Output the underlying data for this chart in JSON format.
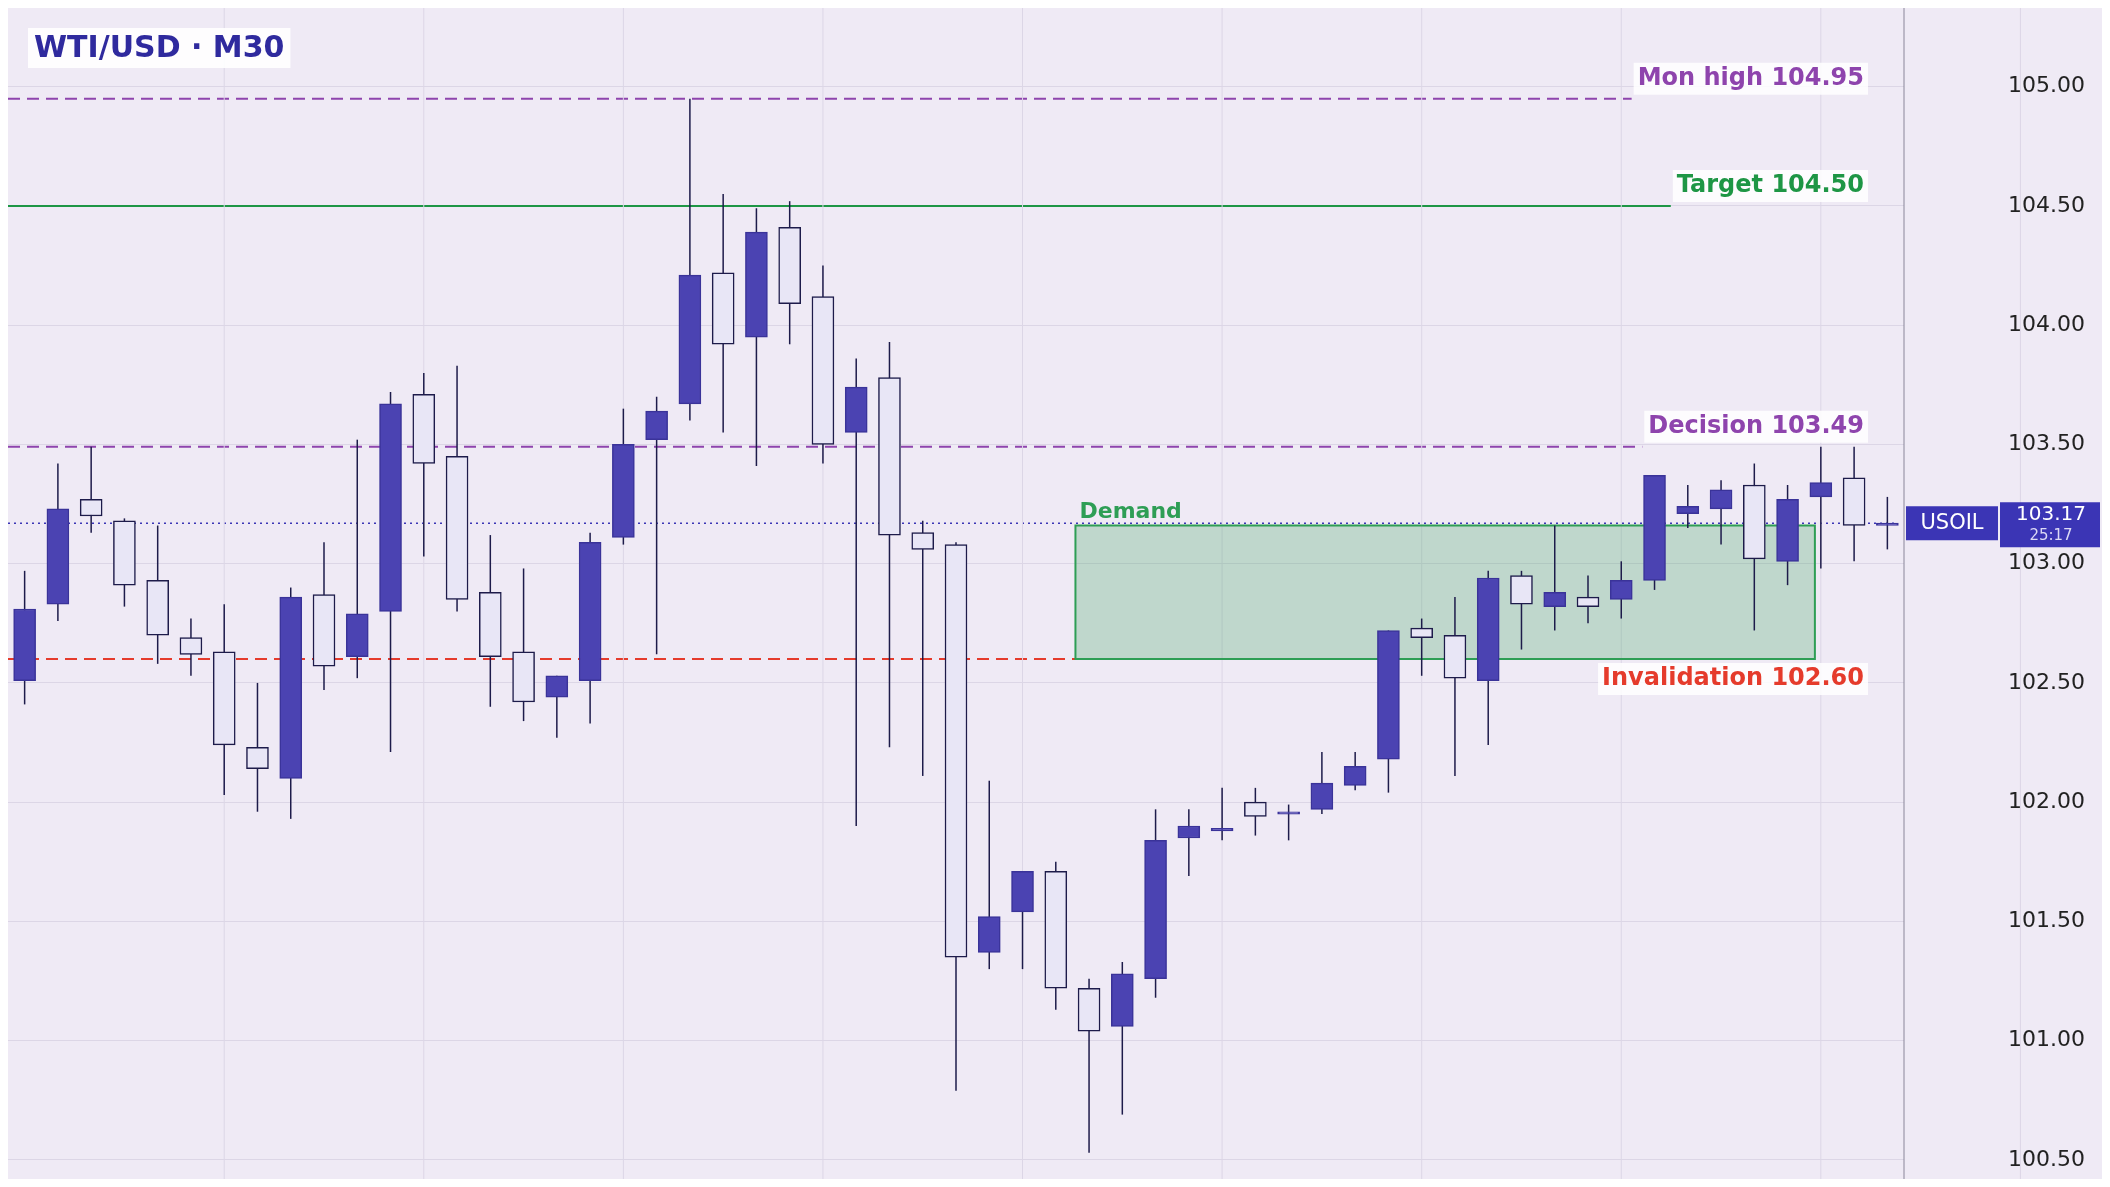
{
  "chart_data": {
    "type": "candlestick",
    "title": "WTI/USD · M30",
    "categories": [
      null,
      null,
      null,
      null,
      null,
      null,
      null,
      null,
      null,
      null,
      null,
      null,
      null,
      null,
      null,
      null,
      null,
      null,
      null,
      null,
      null,
      null,
      null,
      null,
      null,
      null,
      null,
      null,
      null,
      null,
      null,
      null,
      null,
      null,
      null,
      null,
      null,
      null,
      null,
      null,
      null,
      null,
      null,
      null,
      null,
      null,
      null,
      null,
      null,
      null,
      null,
      null,
      null,
      null,
      null,
      null,
      null
    ],
    "ohlc": [
      [
        102.51,
        102.97,
        102.41,
        102.81
      ],
      [
        102.83,
        103.42,
        102.76,
        103.23
      ],
      [
        103.27,
        103.49,
        103.13,
        103.2
      ],
      [
        103.18,
        103.19,
        102.82,
        102.91
      ],
      [
        102.93,
        103.16,
        102.58,
        102.7
      ],
      [
        102.69,
        102.77,
        102.53,
        102.62
      ],
      [
        102.63,
        102.83,
        102.03,
        102.24
      ],
      [
        102.23,
        102.5,
        101.96,
        102.14
      ],
      [
        102.1,
        102.9,
        101.93,
        102.86
      ],
      [
        102.87,
        103.09,
        102.47,
        102.57
      ],
      [
        102.61,
        103.52,
        102.52,
        102.79
      ],
      [
        102.8,
        103.72,
        102.21,
        103.67
      ],
      [
        103.71,
        103.8,
        103.03,
        103.42
      ],
      [
        103.45,
        103.83,
        102.8,
        102.85
      ],
      [
        102.88,
        103.12,
        102.4,
        102.61
      ],
      [
        102.63,
        102.98,
        102.34,
        102.42
      ],
      [
        102.44,
        102.53,
        102.27,
        102.53
      ],
      [
        102.51,
        103.13,
        102.33,
        103.09
      ],
      [
        103.11,
        103.65,
        103.08,
        103.5
      ],
      [
        103.52,
        103.7,
        102.62,
        103.64
      ],
      [
        103.67,
        104.95,
        103.6,
        104.21
      ],
      [
        104.22,
        104.55,
        103.55,
        103.92
      ],
      [
        103.95,
        104.49,
        103.41,
        104.39
      ],
      [
        104.41,
        104.52,
        103.92,
        104.09
      ],
      [
        104.12,
        104.25,
        103.42,
        103.5
      ],
      [
        103.55,
        103.86,
        101.9,
        103.74
      ],
      [
        103.78,
        103.93,
        102.23,
        103.12
      ],
      [
        103.13,
        103.18,
        102.11,
        103.06
      ],
      [
        103.08,
        103.09,
        100.79,
        101.35
      ],
      [
        101.37,
        102.09,
        101.3,
        101.52
      ],
      [
        101.54,
        101.71,
        101.3,
        101.71
      ],
      [
        101.71,
        101.75,
        101.13,
        101.22
      ],
      [
        101.22,
        101.26,
        100.53,
        101.04
      ],
      [
        101.06,
        101.33,
        100.69,
        101.28
      ],
      [
        101.26,
        101.97,
        101.18,
        101.84
      ],
      [
        101.85,
        101.97,
        101.69,
        101.9
      ],
      [
        101.88,
        102.06,
        101.84,
        101.89
      ],
      [
        102.0,
        102.06,
        101.86,
        101.94
      ],
      [
        101.95,
        101.99,
        101.84,
        101.96
      ],
      [
        101.97,
        102.21,
        101.95,
        102.08
      ],
      [
        102.07,
        102.21,
        102.05,
        102.15
      ],
      [
        102.18,
        102.72,
        102.04,
        102.72
      ],
      [
        102.73,
        102.77,
        102.53,
        102.69
      ],
      [
        102.7,
        102.86,
        102.11,
        102.52
      ],
      [
        102.51,
        102.97,
        102.24,
        102.94
      ],
      [
        102.95,
        102.97,
        102.64,
        102.83
      ],
      [
        102.82,
        103.16,
        102.72,
        102.88
      ],
      [
        102.86,
        102.95,
        102.75,
        102.82
      ],
      [
        102.85,
        103.01,
        102.77,
        102.93
      ],
      [
        102.93,
        103.37,
        102.89,
        103.37
      ],
      [
        103.21,
        103.33,
        103.15,
        103.24
      ],
      [
        103.23,
        103.35,
        103.08,
        103.31
      ],
      [
        103.33,
        103.42,
        102.72,
        103.02
      ],
      [
        103.01,
        103.33,
        102.91,
        103.27
      ],
      [
        103.28,
        103.49,
        102.98,
        103.34
      ],
      [
        103.36,
        103.49,
        103.01,
        103.16
      ],
      [
        103.16,
        103.28,
        103.06,
        103.17
      ]
    ],
    "ylim": [
      100.42,
      105.33
    ],
    "yticks": [
      {
        "value": 100.5,
        "label": "100.50"
      },
      {
        "value": 101,
        "label": "101.00"
      },
      {
        "value": 101.5,
        "label": "101.50"
      },
      {
        "value": 102,
        "label": "102.00"
      },
      {
        "value": 102.5,
        "label": "102.50"
      },
      {
        "value": 103,
        "label": "103.00"
      },
      {
        "value": 103.5,
        "label": "103.50"
      },
      {
        "value": 104,
        "label": "104.00"
      },
      {
        "value": 104.5,
        "label": "104.50"
      },
      {
        "value": 105,
        "label": "105.00"
      }
    ],
    "grid": true,
    "ref_lines": [
      {
        "axis": "y",
        "value": 104.95,
        "label": "Mon high 104.95",
        "color": "#8e44ad",
        "line_style": "dashed"
      },
      {
        "axis": "y",
        "value": 104.5,
        "label": "Target 104.50",
        "color": "#1e9645",
        "line_style": "solid"
      },
      {
        "axis": "y",
        "value": 103.49,
        "label": "Decision 103.49",
        "color": "#8e44ad",
        "line_style": "dashed"
      },
      {
        "axis": "y",
        "value": 102.6,
        "label": "Invalidation 102.60",
        "color": "#e53b2c",
        "line_style": "dashed"
      },
      {
        "axis": "y",
        "value": 103.17,
        "label": "USOIL",
        "color": "#3b35b5",
        "line_style": "dotted"
      }
    ],
    "bands": [
      {
        "axis": "y",
        "from": 102.6,
        "to": 103.16,
        "label": "Demand",
        "color": "#2e9e55"
      }
    ],
    "annotations": [
      "103.17",
      "25:17"
    ]
  }
}
